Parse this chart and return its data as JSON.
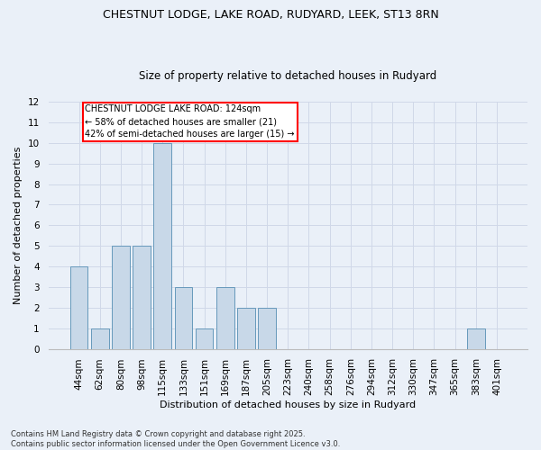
{
  "title_line1": "CHESTNUT LODGE, LAKE ROAD, RUDYARD, LEEK, ST13 8RN",
  "title_line2": "Size of property relative to detached houses in Rudyard",
  "xlabel": "Distribution of detached houses by size in Rudyard",
  "ylabel": "Number of detached properties",
  "categories": [
    "44sqm",
    "62sqm",
    "80sqm",
    "98sqm",
    "115sqm",
    "133sqm",
    "151sqm",
    "169sqm",
    "187sqm",
    "205sqm",
    "223sqm",
    "240sqm",
    "258sqm",
    "276sqm",
    "294sqm",
    "312sqm",
    "330sqm",
    "347sqm",
    "365sqm",
    "383sqm",
    "401sqm"
  ],
  "values": [
    4,
    1,
    5,
    5,
    10,
    3,
    1,
    3,
    2,
    2,
    0,
    0,
    0,
    0,
    0,
    0,
    0,
    0,
    0,
    1,
    0
  ],
  "bar_color": "#c8d8e8",
  "bar_edge_color": "#6699bb",
  "ylim": [
    0,
    12
  ],
  "yticks": [
    0,
    1,
    2,
    3,
    4,
    5,
    6,
    7,
    8,
    9,
    10,
    11,
    12
  ],
  "annotation_text": "CHESTNUT LODGE LAKE ROAD: 124sqm\n← 58% of detached houses are smaller (21)\n42% of semi-detached houses are larger (15) →",
  "footer_text": "Contains HM Land Registry data © Crown copyright and database right 2025.\nContains public sector information licensed under the Open Government Licence v3.0.",
  "grid_color": "#d0d8e8",
  "background_color": "#eaf0f8",
  "title_fontsize": 9,
  "subtitle_fontsize": 8.5,
  "axis_label_fontsize": 8,
  "tick_fontsize": 7.5,
  "annotation_fontsize": 7,
  "footer_fontsize": 6
}
